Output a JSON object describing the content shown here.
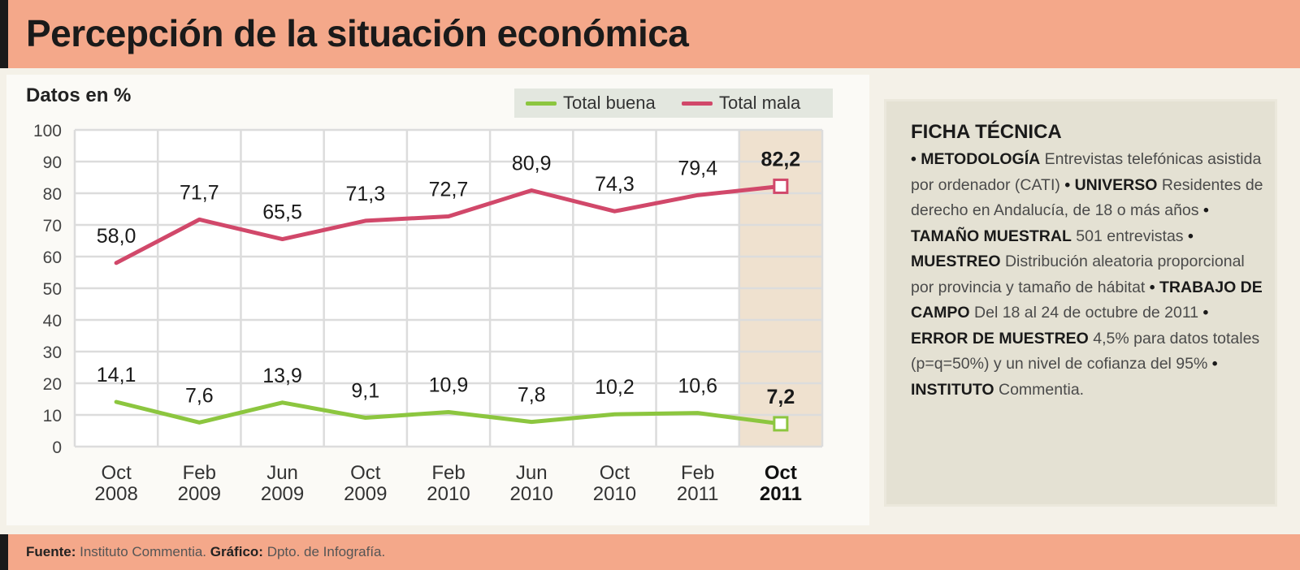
{
  "header": {
    "title": "Percepción de la situación económica"
  },
  "chart_data": {
    "type": "line",
    "subtitle": "Datos en %",
    "categories": [
      [
        "Oct",
        "2008"
      ],
      [
        "Feb",
        "2009"
      ],
      [
        "Jun",
        "2009"
      ],
      [
        "Oct",
        "2009"
      ],
      [
        "Feb",
        "2010"
      ],
      [
        "Jun",
        "2010"
      ],
      [
        "Oct",
        "2010"
      ],
      [
        "Feb",
        "2011"
      ],
      [
        "Oct",
        "2011"
      ]
    ],
    "series": [
      {
        "name": "Total buena",
        "color": "#8cc63f",
        "values": [
          14.1,
          7.6,
          13.9,
          9.1,
          10.9,
          7.8,
          10.2,
          10.6,
          7.2
        ],
        "labels": [
          "14,1",
          "7,6",
          "13,9",
          "9,1",
          "10,9",
          "7,8",
          "10,2",
          "10,6",
          "7,2"
        ]
      },
      {
        "name": "Total mala",
        "color": "#d1486a",
        "values": [
          58.0,
          71.7,
          65.5,
          71.3,
          72.7,
          80.9,
          74.3,
          79.4,
          82.2
        ],
        "labels": [
          "58,0",
          "71,7",
          "65,5",
          "71,3",
          "72,7",
          "80,9",
          "74,3",
          "79,4",
          "82,2"
        ]
      }
    ],
    "yticks": [
      "0",
      "10",
      "20",
      "30",
      "40",
      "50",
      "60",
      "70",
      "80",
      "90",
      "100"
    ],
    "ylim": [
      0,
      100
    ],
    "grid": true,
    "legend_position": "top-right",
    "highlight_last": true
  },
  "ficha": {
    "title": "FICHA TÉCNICA",
    "items": [
      {
        "bullet": "•",
        "label": "METODOLOGÍA",
        "text": "Entrevistas telefónicas asistida por ordenador (CATI)"
      },
      {
        "bullet": "•",
        "label": "UNIVERSO",
        "text": "Residentes de derecho en Andalucía, de 18 o más años"
      },
      {
        "bullet": "•",
        "label": "TAMAÑO MUESTRAL",
        "text": "501 entrevistas"
      },
      {
        "bullet": "•",
        "label": "MUESTREO",
        "text": "Distribución aleatoria proporcional por provincia y tamaño de hábitat"
      },
      {
        "bullet": "•",
        "label": "TRABAJO DE CAMPO",
        "text": "Del 18 al 24 de octubre de 2011"
      },
      {
        "bullet": "•",
        "label": "ERROR DE MUESTREO",
        "text": "4,5% para datos totales (p=q=50%) y un nivel de cofianza del 95%"
      },
      {
        "bullet": "•",
        "label": "INSTITUTO",
        "text": "Commentia."
      }
    ]
  },
  "footer": {
    "source_label": "Fuente:",
    "source_value": "Instituto Commentia.",
    "graphic_label": "Gráfico:",
    "graphic_value": "Dpto. de Infografía."
  }
}
